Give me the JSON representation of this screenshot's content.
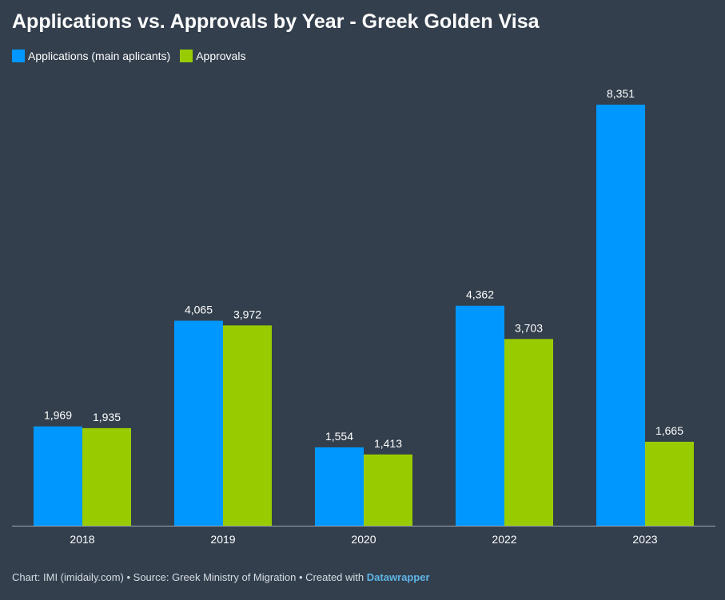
{
  "title": "Applications vs. Approvals by Year - Greek Golden Visa",
  "footer": {
    "text": "Chart: IMI (imidaily.com) • Source: Greek Ministry of Migration • Created with ",
    "link": "Datawrapper"
  },
  "colors": {
    "background": "#333f4d",
    "applications": "#0098ff",
    "approvals": "#99cc00",
    "baseline": "#a0a8b2"
  },
  "chart_data": {
    "type": "bar",
    "categories": [
      "2018",
      "2019",
      "2020",
      "2022",
      "2023"
    ],
    "series": [
      {
        "name": "Applications (main aplicants)",
        "values": [
          1969,
          4065,
          1554,
          4362,
          8351
        ],
        "labels": [
          "1,969",
          "4,065",
          "1,554",
          "4,362",
          "8,351"
        ]
      },
      {
        "name": "Approvals",
        "values": [
          1935,
          3972,
          1413,
          3703,
          1665
        ],
        "labels": [
          "1,935",
          "3,972",
          "1,413",
          "3,703",
          "1,665"
        ]
      }
    ],
    "ylim": [
      0,
      8351
    ],
    "grid": false,
    "legend_position": "top-left"
  }
}
